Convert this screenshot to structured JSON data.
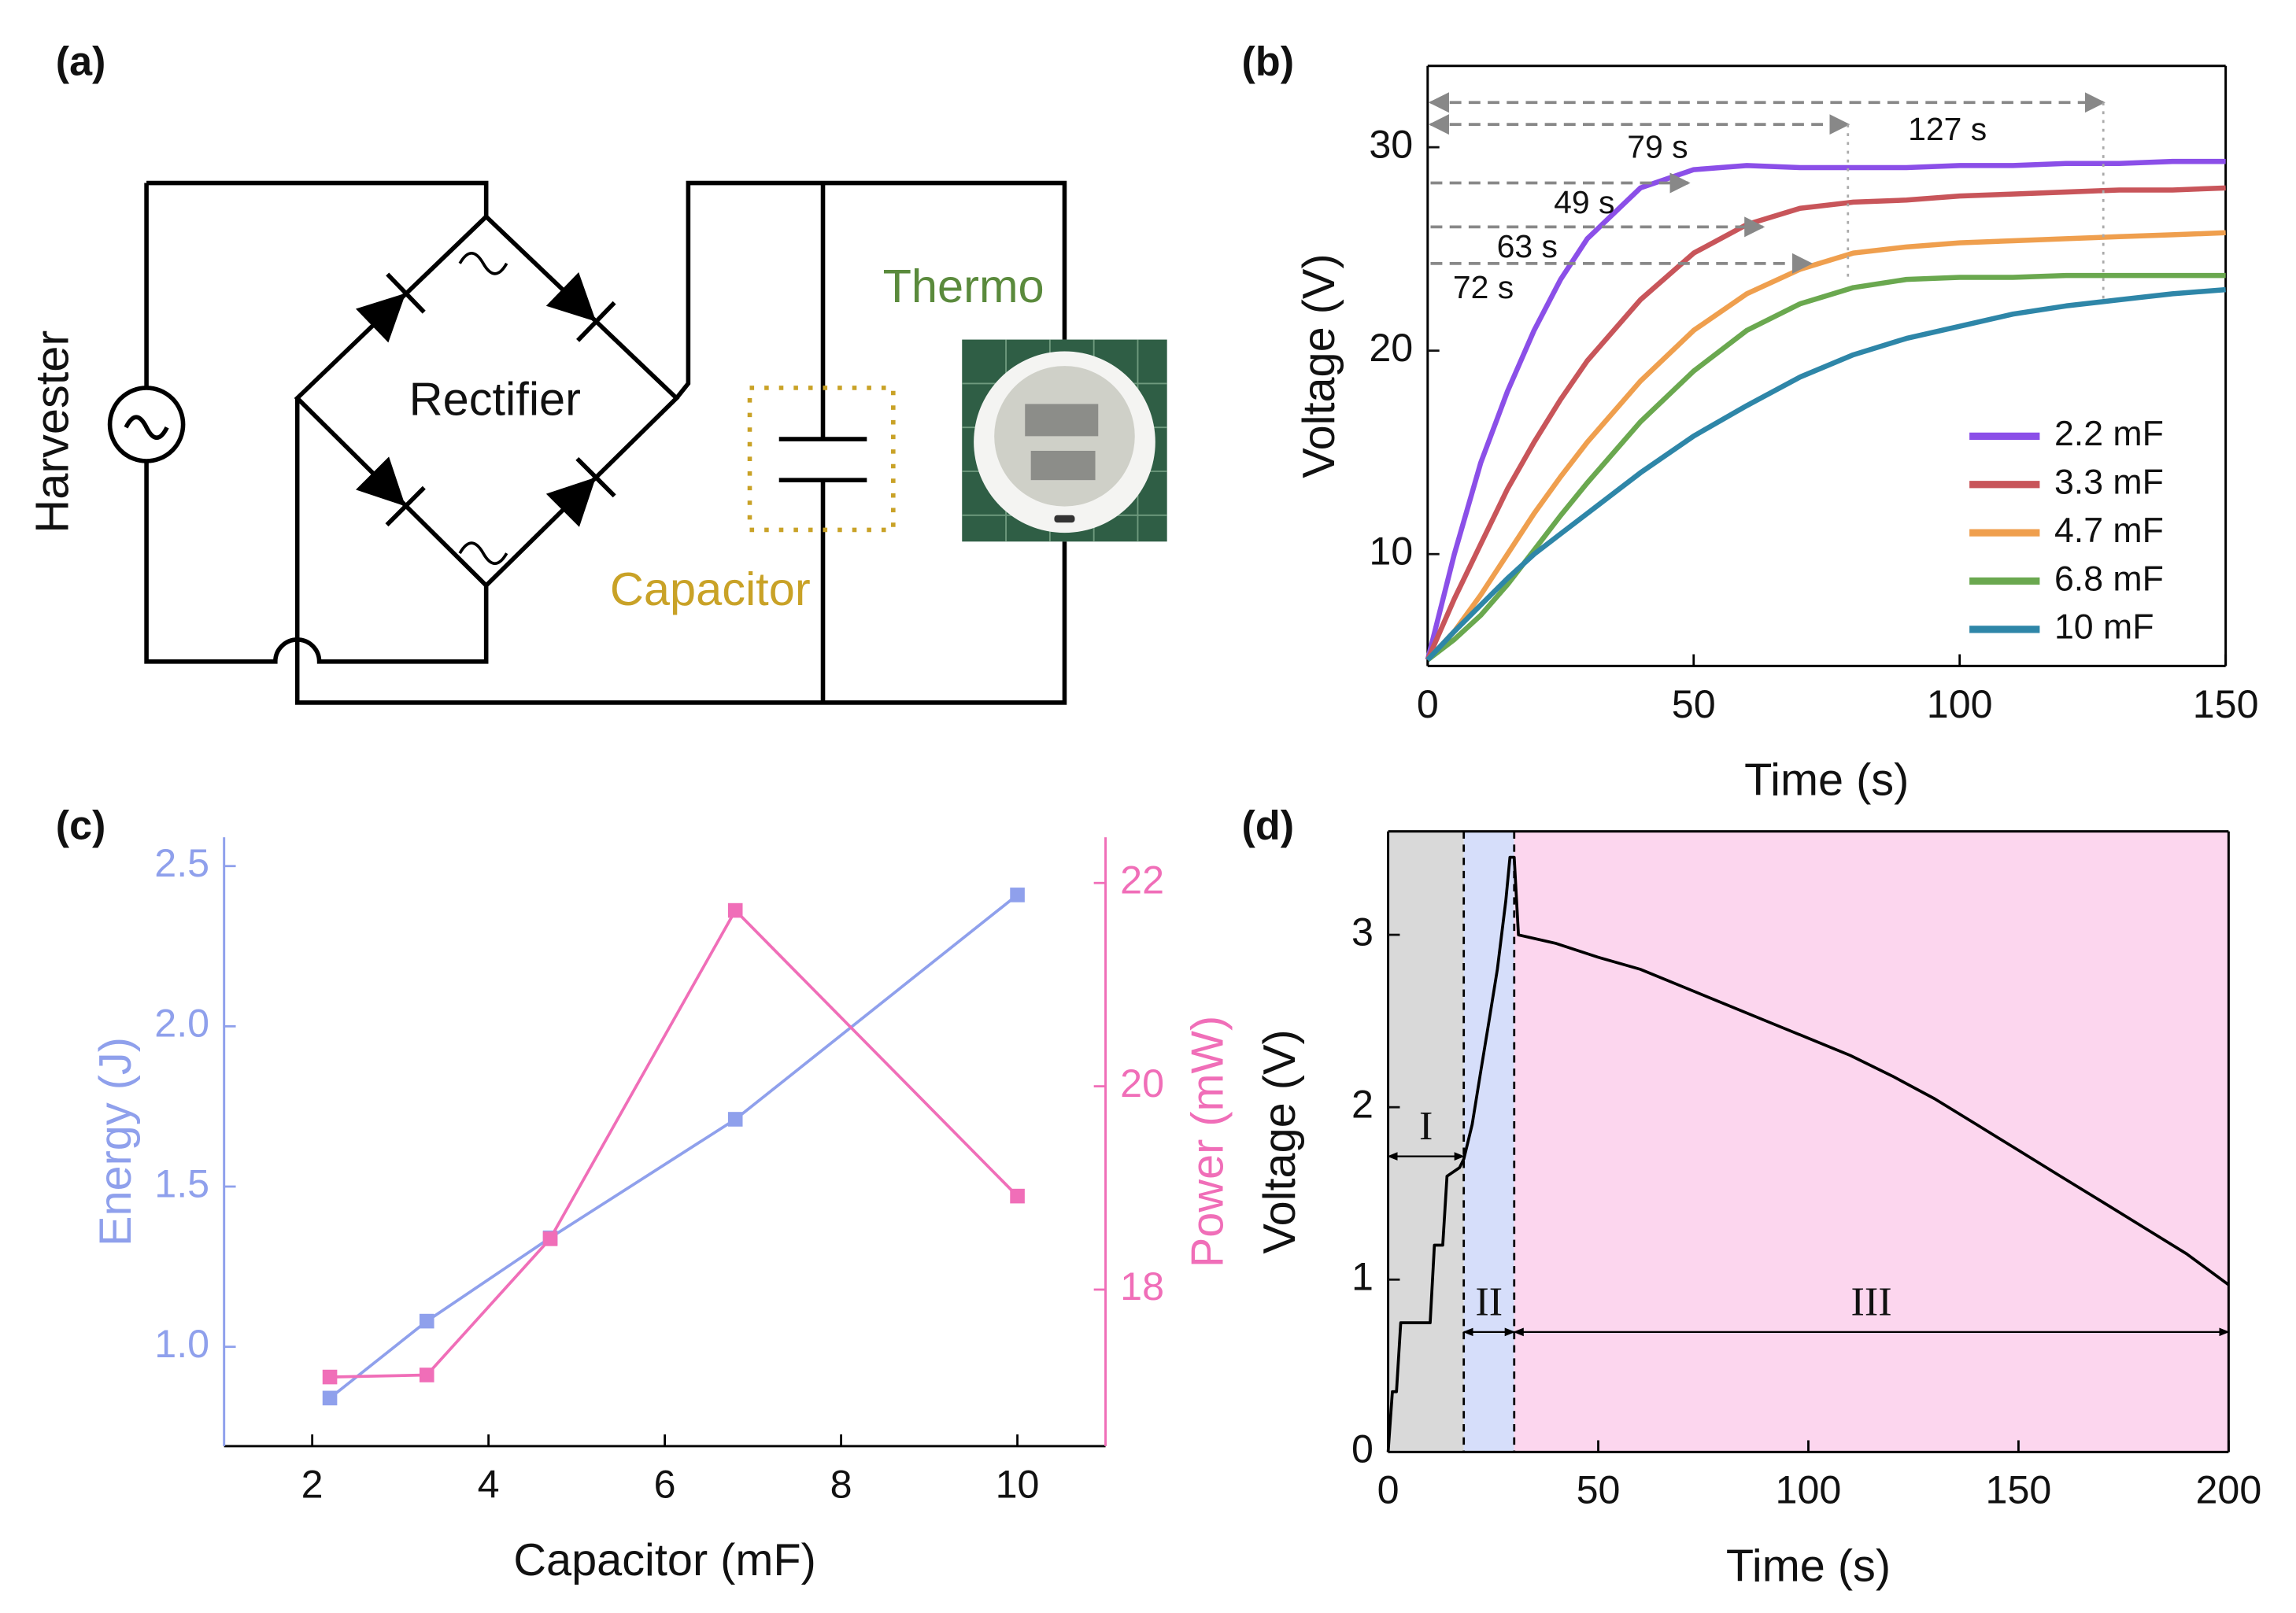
{
  "diagram": {
    "label": "(a)",
    "source": "Harvester",
    "rectifier": "Rectifier",
    "load": "Thermo",
    "storage": "Capacitor"
  },
  "chart_data": [
    {
      "type": "line",
      "label": "(b)",
      "xlabel": "Time (s)",
      "ylabel": "Voltage (V)",
      "xlim": [
        0,
        150
      ],
      "ylim": [
        4.5,
        34
      ],
      "xticks": [
        0,
        50,
        100,
        150
      ],
      "yticks": [
        10,
        20,
        30
      ],
      "legend": "lower right",
      "x": [
        0,
        5,
        10,
        15,
        20,
        25,
        30,
        40,
        50,
        60,
        70,
        80,
        90,
        100,
        110,
        120,
        130,
        140,
        150
      ],
      "series": [
        {
          "name": "2.2 mF",
          "color": "#8b4fe8",
          "values": [
            4.8,
            10,
            14.5,
            18,
            21,
            23.5,
            25.5,
            28,
            28.9,
            29.1,
            29,
            29,
            29,
            29.1,
            29.1,
            29.2,
            29.2,
            29.3,
            29.3
          ]
        },
        {
          "name": "3.3 mF",
          "color": "#c8555a",
          "values": [
            4.8,
            7.8,
            10.5,
            13.2,
            15.5,
            17.6,
            19.5,
            22.5,
            24.8,
            26.2,
            27,
            27.3,
            27.4,
            27.6,
            27.7,
            27.8,
            27.9,
            27.9,
            28
          ]
        },
        {
          "name": "4.7 mF",
          "color": "#ef9f4e",
          "values": [
            4.8,
            6.2,
            8,
            10,
            12,
            13.8,
            15.5,
            18.5,
            21,
            22.8,
            24,
            24.8,
            25.1,
            25.3,
            25.4,
            25.5,
            25.6,
            25.7,
            25.8
          ]
        },
        {
          "name": "6.8 mF",
          "color": "#6aa84f",
          "values": [
            4.8,
            5.8,
            7,
            8.5,
            10.2,
            11.9,
            13.5,
            16.5,
            19,
            21,
            22.3,
            23.1,
            23.5,
            23.6,
            23.6,
            23.7,
            23.7,
            23.7,
            23.7
          ]
        },
        {
          "name": "10 mF",
          "color": "#2e86a8",
          "values": [
            4.8,
            6.2,
            7.5,
            8.8,
            10,
            11,
            12,
            14,
            15.8,
            17.3,
            18.7,
            19.8,
            20.6,
            21.2,
            21.8,
            22.2,
            22.5,
            22.8,
            23
          ]
        }
      ],
      "annotations": [
        {
          "text": "127 s",
          "value": 127
        },
        {
          "text": "79 s",
          "value": 79
        },
        {
          "text": "49 s",
          "value": 49
        },
        {
          "text": "63 s",
          "value": 63
        },
        {
          "text": "72 s",
          "value": 72
        }
      ]
    },
    {
      "type": "line",
      "label": "(c)",
      "xlabel": "Capacitor (mF)",
      "xlim": [
        1,
        11
      ],
      "ylim": [
        0.69,
        2.59
      ],
      "y2lim": [
        16.46,
        22.45
      ],
      "xticks": [
        2,
        4,
        6,
        8,
        10
      ],
      "yticks": [
        {
          "value": 1,
          "label": "1.0"
        },
        1.5,
        {
          "value": 2,
          "label": "2.0"
        },
        2.5
      ],
      "y2ticks": [
        18,
        20,
        22
      ],
      "markers": true,
      "x": [
        2.2,
        3.3,
        4.7,
        6.8,
        10
      ],
      "series": [
        {
          "name": "Energy (J)",
          "color": "#8fa0ec",
          "values": [
            0.84,
            1.08,
            1.34,
            1.71,
            2.41
          ]
        },
        {
          "name": "Power (mW)",
          "color": "#f06eb8",
          "axis": "y2",
          "values": [
            17.14,
            17.16,
            18.5,
            21.73,
            18.92
          ]
        }
      ]
    },
    {
      "type": "line",
      "label": "(d)",
      "xlabel": "Time (s)",
      "ylabel": "Voltage (V)",
      "xlim": [
        0,
        200
      ],
      "ylim": [
        0,
        3.6
      ],
      "xticks": [
        0,
        50,
        100,
        150,
        200
      ],
      "yticks": [
        0,
        1,
        2,
        3
      ],
      "regions": [
        {
          "label": "I",
          "start": 0,
          "end": 18,
          "color": "#d9d9d9"
        },
        {
          "label": "II",
          "start": 18,
          "end": 30,
          "color": "#d6defa"
        },
        {
          "label": "III",
          "start": 30,
          "end": 200,
          "color": "#fcd6ee"
        }
      ],
      "x": [
        0,
        1,
        2,
        3,
        10,
        11,
        13,
        14,
        17,
        18,
        20,
        22,
        24,
        26,
        28,
        29,
        30,
        31,
        40,
        50,
        60,
        70,
        80,
        90,
        100,
        110,
        120,
        130,
        140,
        150,
        160,
        170,
        180,
        190,
        200
      ],
      "series": [
        {
          "color": "#000000",
          "values": [
            0,
            0.35,
            0.35,
            0.75,
            0.75,
            1.2,
            1.2,
            1.6,
            1.65,
            1.7,
            1.9,
            2.2,
            2.5,
            2.8,
            3.2,
            3.45,
            3.45,
            3,
            2.95,
            2.87,
            2.8,
            2.7,
            2.6,
            2.5,
            2.4,
            2.3,
            2.18,
            2.05,
            1.9,
            1.75,
            1.6,
            1.45,
            1.3,
            1.15,
            0.97
          ]
        }
      ]
    }
  ]
}
